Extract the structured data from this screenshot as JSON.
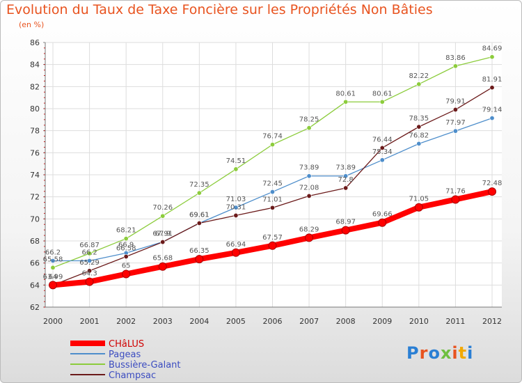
{
  "title": "Evolution du Taux de Taxe Foncière sur les Propriétés Non Bâties",
  "unit_label": "(en %)",
  "logo": "Proxiti",
  "chart_data": {
    "type": "line",
    "title": "Evolution du Taux de Taxe Foncière sur les Propriétés Non Bâties",
    "ylabel": "(en %)",
    "xlabel": "",
    "x": [
      "2000",
      "2001",
      "2002",
      "2003",
      "2004",
      "2005",
      "2006",
      "2007",
      "2008",
      "2009",
      "2010",
      "2011",
      "2012"
    ],
    "ylim": [
      62,
      86
    ],
    "yticks": [
      62,
      64,
      66,
      68,
      70,
      72,
      74,
      76,
      78,
      80,
      82,
      84,
      86
    ],
    "grid": true,
    "legend_position": "bottom-left",
    "series": [
      {
        "name": "CHâLUS",
        "color": "#ff0000",
        "values": [
          64,
          64.3,
          65,
          65.68,
          66.35,
          66.94,
          67.57,
          68.29,
          68.97,
          69.66,
          71.05,
          71.76,
          72.48
        ],
        "labels": [
          "64",
          "64.3",
          "65",
          "65.68",
          "66.35",
          "66.94",
          "67.57",
          "68.29",
          "68.97",
          "69.66",
          "71.05",
          "71.76",
          "72.48"
        ]
      },
      {
        "name": "Pageas",
        "color": "#4e8ecb",
        "values": [
          66.2,
          66.2,
          66.9,
          67.91,
          69.61,
          71.03,
          72.45,
          73.89,
          73.89,
          75.34,
          76.82,
          77.97,
          79.14
        ],
        "labels": [
          "66.2",
          "66.2",
          "66.9",
          "67.91",
          "69.61",
          "71.03",
          "72.45",
          "73.89",
          "73.89",
          "75.34",
          "76.82",
          "77.97",
          "79.14"
        ]
      },
      {
        "name": "Bussière-Galant",
        "color": "#8ccc3c",
        "values": [
          65.58,
          66.87,
          68.21,
          70.26,
          72.35,
          74.51,
          76.74,
          78.25,
          80.61,
          80.61,
          82.22,
          83.86,
          84.69
        ],
        "labels": [
          "65.58",
          "66.87",
          "68.21",
          "70.26",
          "72.35",
          "74.51",
          "76.74",
          "78.25",
          "80.61",
          "80.61",
          "82.22",
          "83.86",
          "84.69"
        ]
      },
      {
        "name": "Champsac",
        "color": "#6b1a1a",
        "values": [
          63.99,
          65.29,
          66.58,
          67.9,
          69.61,
          70.31,
          71.01,
          72.08,
          72.8,
          76.44,
          78.35,
          79.91,
          81.91
        ],
        "labels": [
          "63.99",
          "65.29",
          "66.58",
          "67.9",
          "69.61",
          "70.31",
          "71.01",
          "72.08",
          "72.8",
          "76.44",
          "78.35",
          "79.91",
          "81.91"
        ]
      }
    ]
  }
}
